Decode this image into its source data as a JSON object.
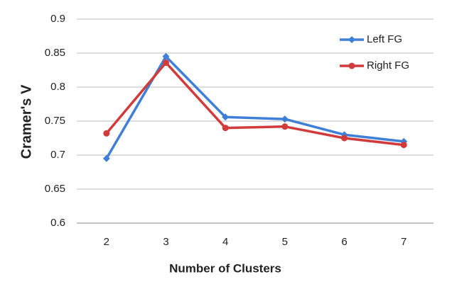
{
  "chart_data": {
    "type": "line",
    "x_label": "Number of Clusters",
    "y_label": "Cramer's V",
    "x": [
      2,
      3,
      4,
      5,
      6,
      7
    ],
    "xlim": [
      1.5,
      7.5
    ],
    "series": [
      {
        "name": "Left FG",
        "color": "#3f7fd6",
        "marker": "diamond",
        "values": [
          0.695,
          0.845,
          0.756,
          0.753,
          0.73,
          0.72
        ]
      },
      {
        "name": "Right FG",
        "color": "#d13b3b",
        "marker": "circle",
        "values": [
          0.732,
          0.836,
          0.74,
          0.742,
          0.725,
          0.715
        ]
      }
    ],
    "ylim": [
      0.6,
      0.9
    ],
    "yticks": [
      0.6,
      0.65,
      0.7,
      0.75,
      0.8,
      0.85,
      0.9
    ],
    "grid": true,
    "legend": "top-right"
  }
}
